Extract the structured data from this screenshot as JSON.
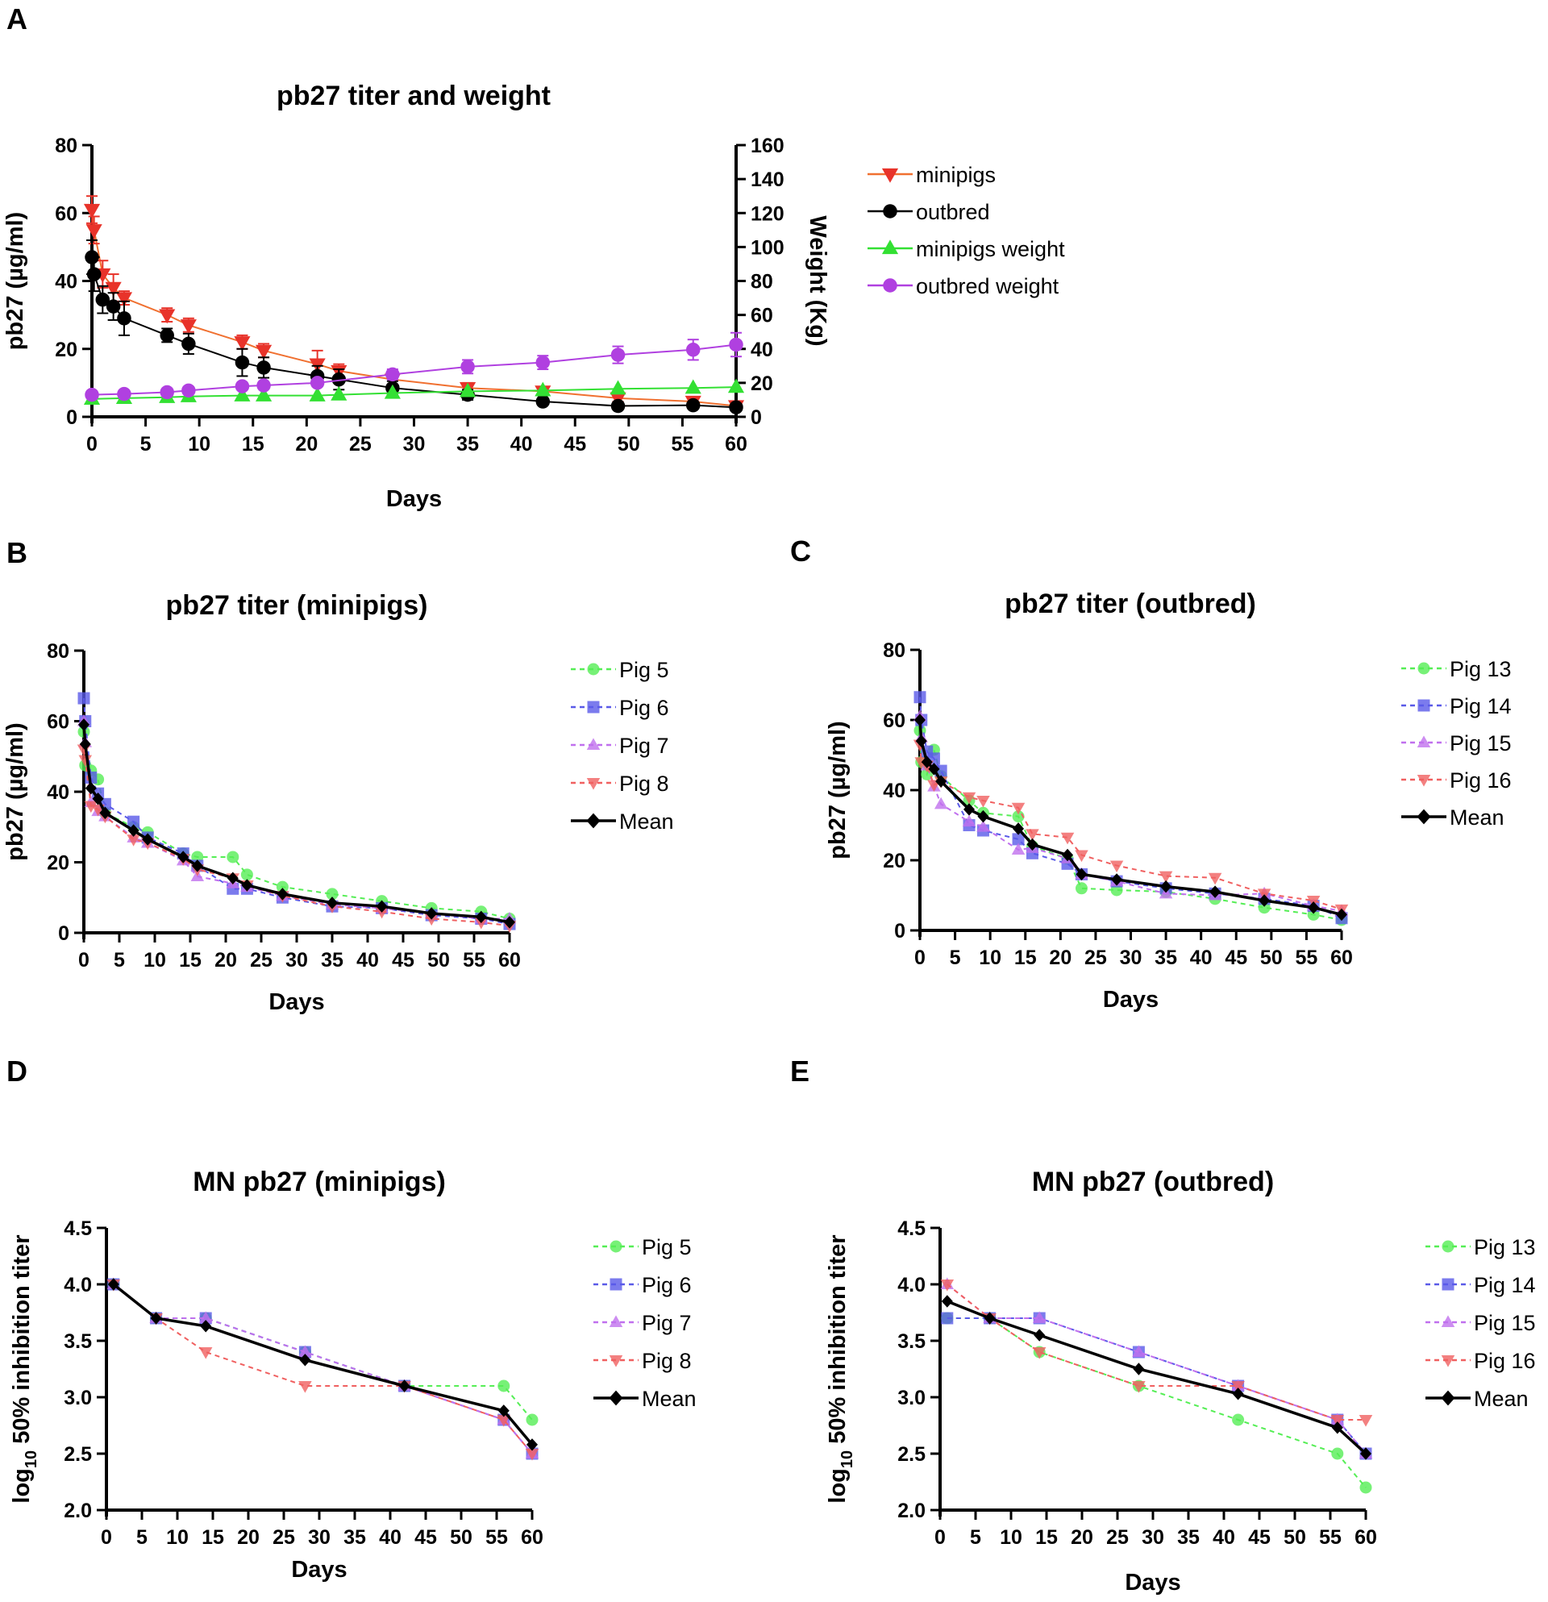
{
  "panel_labels": [
    "A",
    "B",
    "C",
    "D",
    "E"
  ],
  "legend_colors": {
    "minipigs": "#e8332a",
    "minipigs_line": "#f07030",
    "outbred": "#000000",
    "minipigs_weight": "#33e033",
    "outbred_weight": "#b040e0",
    "pig_green": "#55ee55",
    "pig_blue": "#5a5ae8",
    "pig_purple": "#c070ee",
    "pig_red": "#f06060",
    "mean": "#000000"
  },
  "chart_data": [
    {
      "id": "A",
      "type": "line",
      "title": "pb27 titer and weight",
      "xlabel": "Days",
      "ylabel": "pb27 (µg/ml)",
      "y2label": "Weight (Kg)",
      "xlim": [
        0,
        60
      ],
      "ylim": [
        0,
        80
      ],
      "y2lim": [
        0,
        160
      ],
      "xticks": [
        "0",
        "5",
        "10",
        "15",
        "20",
        "25",
        "30",
        "35",
        "40",
        "45",
        "50",
        "55",
        "60"
      ],
      "yticks": [
        "0",
        "20",
        "40",
        "60",
        "80"
      ],
      "y2ticks": [
        "0",
        "20",
        "40",
        "60",
        "80",
        "100",
        "120",
        "140",
        "160"
      ],
      "series": [
        {
          "name": "minipigs",
          "marker": "tri-down",
          "axis": "left",
          "x": [
            0,
            0.2,
            1,
            2,
            3,
            7,
            9,
            14,
            16,
            21,
            23,
            28,
            35,
            42,
            49,
            56,
            60
          ],
          "y": [
            61,
            55,
            42,
            38,
            35,
            30,
            27,
            22,
            19.5,
            15.5,
            13.5,
            11,
            8.5,
            7.5,
            5.5,
            4.5,
            3.2
          ],
          "err": [
            4,
            4,
            4,
            4,
            2,
            2,
            2,
            2,
            2,
            4,
            2,
            1.5,
            1.5,
            1,
            1,
            0.8,
            0.8
          ]
        },
        {
          "name": "outbred",
          "marker": "circle",
          "axis": "left",
          "x": [
            0,
            0.2,
            1,
            2,
            3,
            7,
            9,
            14,
            16,
            21,
            23,
            28,
            35,
            42,
            49,
            56,
            60
          ],
          "y": [
            47,
            42,
            34.5,
            32.5,
            29,
            24,
            21.5,
            16,
            14.5,
            12,
            11,
            8.5,
            6.5,
            4.5,
            3.2,
            3.4,
            2.8
          ],
          "err": [
            5,
            5,
            4,
            4,
            5,
            2,
            3,
            4,
            3,
            3,
            3,
            2,
            1.5,
            1,
            0.8,
            1,
            0.8
          ]
        },
        {
          "name": "minipigs weight",
          "marker": "tri-up",
          "axis": "right",
          "x": [
            0,
            3,
            7,
            9,
            14,
            16,
            21,
            23,
            28,
            35,
            42,
            49,
            56,
            60
          ],
          "y": [
            10.5,
            11,
            11.5,
            12,
            12.5,
            12.5,
            12.5,
            13,
            14,
            15,
            15.5,
            16.5,
            17,
            17.5
          ]
        },
        {
          "name": "outbred weight",
          "marker": "circle",
          "axis": "right",
          "x": [
            0,
            3,
            7,
            9,
            14,
            16,
            21,
            28,
            35,
            42,
            49,
            56,
            60
          ],
          "y": [
            13,
            13.5,
            14.5,
            15.5,
            18,
            18.5,
            20,
            25,
            29.5,
            32,
            36.5,
            39.5,
            42.5
          ],
          "err": [
            1.5,
            1.5,
            1.5,
            1.5,
            2,
            2,
            2,
            3,
            4,
            4,
            5,
            6,
            7
          ]
        }
      ]
    },
    {
      "id": "B",
      "type": "line",
      "title": "pb27 titer (minipigs)",
      "xlabel": "Days",
      "ylabel": "pb27 (µg/ml)",
      "xlim": [
        0,
        60
      ],
      "ylim": [
        0,
        80
      ],
      "xticks": [
        "0",
        "5",
        "10",
        "15",
        "20",
        "25",
        "30",
        "35",
        "40",
        "45",
        "50",
        "55",
        "60"
      ],
      "yticks": [
        "0",
        "20",
        "40",
        "60",
        "80"
      ],
      "series": [
        {
          "name": "Pig 5",
          "marker": "circle",
          "x": [
            0,
            0.2,
            1,
            2,
            3,
            7,
            9,
            14,
            16,
            21,
            23,
            28,
            35,
            42,
            49,
            56,
            60
          ],
          "y": [
            57,
            47.5,
            46,
            43.5,
            34,
            30,
            28.5,
            22.5,
            21.5,
            21.5,
            16.5,
            13,
            11,
            9,
            7,
            6,
            4
          ]
        },
        {
          "name": "Pig 6",
          "marker": "square",
          "x": [
            0,
            0.2,
            1,
            2,
            3,
            7,
            9,
            14,
            16,
            21,
            23,
            28,
            35,
            42,
            49,
            56,
            60
          ],
          "y": [
            66.5,
            60,
            44,
            39.5,
            36.5,
            31.5,
            27,
            22.5,
            19,
            12.5,
            12.5,
            10,
            7.5,
            7,
            5,
            4,
            2.5
          ]
        },
        {
          "name": "Pig 7",
          "marker": "tri-up",
          "x": [
            0,
            0.2,
            1,
            2,
            3,
            7,
            9,
            14,
            16,
            21,
            23,
            28,
            35,
            42,
            49,
            56,
            60
          ],
          "y": [
            60,
            54,
            37,
            34.5,
            33,
            27,
            25.5,
            20.5,
            16,
            14,
            13,
            10.5,
            8,
            7,
            5.5,
            4,
            4
          ]
        },
        {
          "name": "Pig 8",
          "marker": "tri-down",
          "x": [
            0,
            0.2,
            1,
            2,
            3,
            7,
            9,
            14,
            16,
            21,
            23,
            28,
            35,
            42,
            49,
            56,
            60
          ],
          "y": [
            52,
            49,
            36,
            35,
            33,
            26.5,
            25.5,
            21,
            18,
            15.5,
            13.5,
            10.5,
            7.5,
            6,
            4,
            3,
            2
          ]
        },
        {
          "name": "Mean",
          "marker": "diamond",
          "x": [
            0,
            0.2,
            1,
            2,
            3,
            7,
            9,
            14,
            16,
            21,
            23,
            28,
            35,
            42,
            49,
            56,
            60
          ],
          "y": [
            59,
            53.5,
            41,
            38,
            34,
            29,
            26.5,
            21.5,
            19,
            15.5,
            13.5,
            11,
            8.5,
            7.5,
            5.5,
            4.5,
            3
          ]
        }
      ]
    },
    {
      "id": "C",
      "type": "line",
      "title": "pb27 titer (outbred)",
      "xlabel": "Days",
      "ylabel": "pb27 (µg/ml)",
      "xlim": [
        0,
        60
      ],
      "ylim": [
        0,
        80
      ],
      "xticks": [
        "0",
        "5",
        "10",
        "15",
        "20",
        "25",
        "30",
        "35",
        "40",
        "45",
        "50",
        "55",
        "60"
      ],
      "yticks": [
        "0",
        "20",
        "40",
        "60",
        "80"
      ],
      "series": [
        {
          "name": "Pig 13",
          "marker": "circle",
          "x": [
            0,
            0.2,
            1,
            2,
            3,
            7,
            9,
            14,
            16,
            21,
            23,
            28,
            35,
            42,
            49,
            56,
            60
          ],
          "y": [
            57,
            48,
            44.5,
            51.5,
            44,
            37,
            33.5,
            32.5,
            24,
            20.5,
            12,
            11.5,
            11,
            9,
            6.5,
            4.5,
            3
          ]
        },
        {
          "name": "Pig 14",
          "marker": "square",
          "x": [
            0,
            0.2,
            1,
            2,
            3,
            7,
            9,
            14,
            16,
            21,
            23,
            28,
            35,
            42,
            49,
            56,
            60
          ],
          "y": [
            66.5,
            60,
            51,
            49,
            45.5,
            30,
            28.5,
            26,
            22,
            19,
            16,
            14,
            12,
            10.5,
            9,
            7,
            3.5
          ]
        },
        {
          "name": "Pig 15",
          "marker": "tri-up",
          "x": [
            0,
            0.2,
            1,
            2,
            3,
            7,
            9,
            14,
            16,
            21,
            23,
            28,
            35,
            42,
            49,
            56,
            60
          ],
          "y": [
            61,
            55,
            47,
            41,
            36,
            31,
            29.5,
            23,
            23.5,
            20.5,
            16,
            14,
            10.5,
            10,
            10.5,
            7,
            5.5
          ]
        },
        {
          "name": "Pig 16",
          "marker": "tri-down",
          "x": [
            0,
            0.2,
            1,
            2,
            3,
            7,
            9,
            14,
            16,
            21,
            23,
            28,
            35,
            42,
            49,
            56,
            60
          ],
          "y": [
            53,
            48,
            47,
            41.5,
            42.5,
            38,
            37,
            35,
            27.5,
            26.5,
            21.5,
            18.5,
            15.5,
            15,
            10.5,
            8.5,
            6
          ]
        },
        {
          "name": "Mean",
          "marker": "diamond",
          "x": [
            0,
            0.2,
            1,
            2,
            3,
            7,
            9,
            14,
            16,
            21,
            23,
            28,
            35,
            42,
            49,
            56,
            60
          ],
          "y": [
            60,
            54,
            48,
            46,
            42.5,
            34.5,
            32.5,
            29,
            24.5,
            21.5,
            16,
            14.5,
            12.5,
            11,
            8.5,
            6.5,
            4.5
          ]
        }
      ]
    },
    {
      "id": "D",
      "type": "line",
      "title": "MN pb27 (minipigs)",
      "xlabel": "Days",
      "ylabel_main": "log",
      "ylabel_sub": "10",
      "ylabel_rest": " 50% inhibition titer",
      "xlim": [
        0,
        60
      ],
      "ylim": [
        2.0,
        4.5
      ],
      "xticks": [
        "0",
        "5",
        "10",
        "15",
        "20",
        "25",
        "30",
        "35",
        "40",
        "45",
        "50",
        "55",
        "60"
      ],
      "yticks": [
        "2.0",
        "2.5",
        "3.0",
        "3.5",
        "4.0",
        "4.5"
      ],
      "series": [
        {
          "name": "Pig 5",
          "marker": "circle",
          "x": [
            1,
            7,
            14,
            28,
            42,
            56,
            60
          ],
          "y": [
            4.0,
            3.7,
            3.7,
            3.4,
            3.1,
            3.1,
            2.8
          ]
        },
        {
          "name": "Pig 6",
          "marker": "square",
          "x": [
            1,
            7,
            14,
            28,
            42,
            56,
            60
          ],
          "y": [
            4.0,
            3.7,
            3.7,
            3.4,
            3.1,
            2.8,
            2.5
          ]
        },
        {
          "name": "Pig 7",
          "marker": "tri-up",
          "x": [
            1,
            7,
            14,
            28,
            42,
            56,
            60
          ],
          "y": [
            4.0,
            3.7,
            3.7,
            3.4,
            3.1,
            2.8,
            2.5
          ]
        },
        {
          "name": "Pig 8",
          "marker": "tri-down",
          "x": [
            1,
            7,
            14,
            28,
            42,
            56,
            60
          ],
          "y": [
            4.0,
            3.7,
            3.4,
            3.1,
            3.1,
            2.8,
            2.5
          ]
        },
        {
          "name": "Mean",
          "marker": "diamond",
          "x": [
            1,
            7,
            14,
            28,
            42,
            56,
            60
          ],
          "y": [
            4.0,
            3.7,
            3.63,
            3.33,
            3.1,
            2.88,
            2.58
          ]
        }
      ]
    },
    {
      "id": "E",
      "type": "line",
      "title": "MN pb27 (outbred)",
      "xlabel": "Days",
      "ylabel_main": "log",
      "ylabel_sub": "10",
      "ylabel_rest": " 50% inhibition titer",
      "xlim": [
        0,
        60
      ],
      "ylim": [
        2.0,
        4.5
      ],
      "xticks": [
        "0",
        "5",
        "10",
        "15",
        "20",
        "25",
        "30",
        "35",
        "40",
        "45",
        "50",
        "55",
        "60"
      ],
      "yticks": [
        "2.0",
        "2.5",
        "3.0",
        "3.5",
        "4.0",
        "4.5"
      ],
      "series": [
        {
          "name": "Pig 13",
          "marker": "circle",
          "x": [
            1,
            7,
            14,
            28,
            42,
            56,
            60
          ],
          "y": [
            3.7,
            3.7,
            3.4,
            3.1,
            2.8,
            2.5,
            2.2
          ]
        },
        {
          "name": "Pig 14",
          "marker": "square",
          "x": [
            1,
            7,
            14,
            28,
            42,
            56,
            60
          ],
          "y": [
            3.7,
            3.7,
            3.7,
            3.4,
            3.1,
            2.8,
            2.5
          ]
        },
        {
          "name": "Pig 15",
          "marker": "tri-up",
          "x": [
            1,
            7,
            14,
            28,
            42,
            56,
            60
          ],
          "y": [
            4.0,
            3.7,
            3.7,
            3.4,
            3.1,
            2.8,
            2.5
          ]
        },
        {
          "name": "Pig 16",
          "marker": "tri-down",
          "x": [
            1,
            7,
            14,
            28,
            42,
            56,
            60
          ],
          "y": [
            4.0,
            3.7,
            3.4,
            3.1,
            3.1,
            2.8,
            2.8
          ]
        },
        {
          "name": "Mean",
          "marker": "diamond",
          "x": [
            1,
            7,
            14,
            28,
            42,
            56,
            60
          ],
          "y": [
            3.85,
            3.7,
            3.55,
            3.25,
            3.03,
            2.73,
            2.5
          ]
        }
      ]
    }
  ]
}
